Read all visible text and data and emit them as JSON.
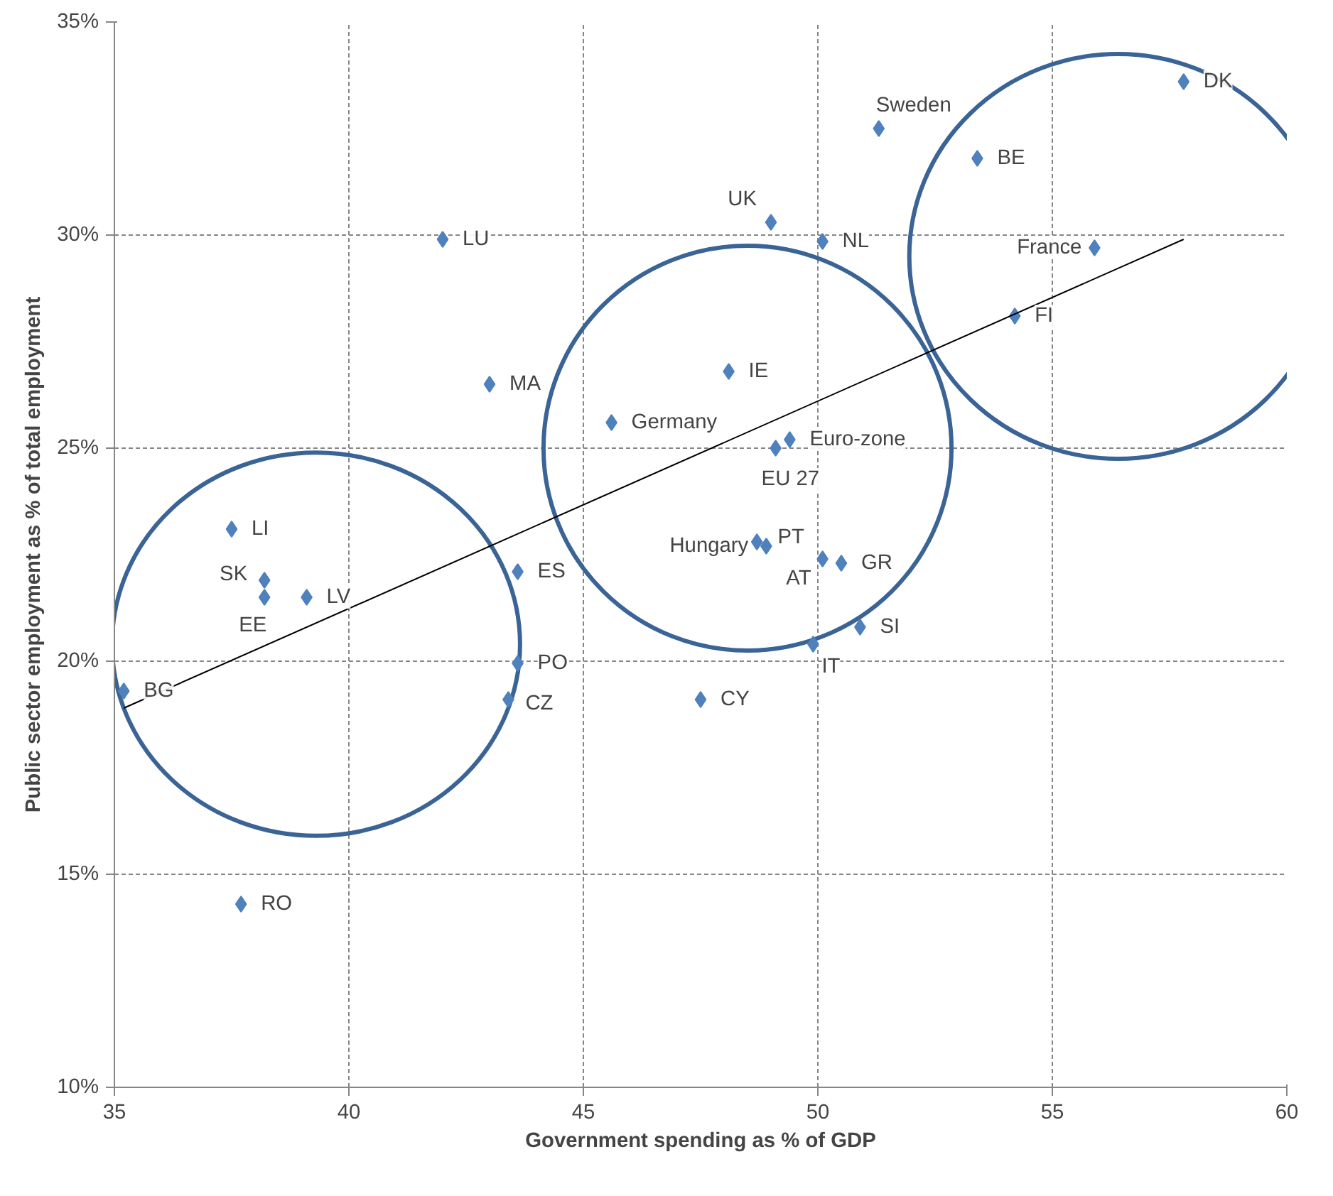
{
  "chart_data": {
    "type": "scatter",
    "xlabel": "Government spending as % of GDP",
    "ylabel": "Public sector employment as % of total employment",
    "xlim": [
      35,
      60
    ],
    "xticks": [
      35,
      40,
      45,
      50,
      55,
      60
    ],
    "ylim": [
      10,
      35
    ],
    "yticks": [
      {
        "value": 10,
        "label": "10%"
      },
      {
        "value": 15,
        "label": "15%"
      },
      {
        "value": 20,
        "label": "20%"
      },
      {
        "value": 25,
        "label": "25%"
      },
      {
        "value": 30,
        "label": "30%"
      },
      {
        "value": 35,
        "label": "35%"
      }
    ],
    "grid": true,
    "series": [
      {
        "marker": "diamond",
        "color": "#4f81bd",
        "x": [
          57.8,
          51.3,
          53.4,
          49.0,
          50.1,
          42.0,
          55.9,
          54.2,
          48.1,
          43.0,
          45.6,
          49.4,
          49.1,
          48.7,
          48.9,
          50.1,
          50.5,
          50.9,
          49.9,
          47.5,
          43.6,
          43.6,
          43.4,
          35.2,
          37.5,
          38.2,
          38.2,
          39.1,
          37.7
        ],
        "values": [
          33.6,
          32.5,
          31.8,
          30.3,
          29.85,
          29.9,
          29.7,
          28.1,
          26.8,
          26.5,
          25.6,
          25.2,
          25.0,
          22.8,
          22.7,
          22.4,
          22.3,
          20.8,
          20.4,
          19.1,
          22.1,
          19.95,
          19.1,
          19.3,
          23.1,
          21.9,
          21.5,
          21.5,
          14.3
        ]
      },
      {
        "type": "line",
        "marker": "none",
        "color": "#000000",
        "x": [
          35.2,
          57.8
        ],
        "values": [
          18.9,
          29.9
        ]
      }
    ],
    "annotations": [
      {
        "text": "DK",
        "x": 57.8,
        "y": 33.6
      },
      {
        "text": "Sweden",
        "x": 51.3,
        "y": 32.5
      },
      {
        "text": "BE",
        "x": 53.4,
        "y": 31.8
      },
      {
        "text": "UK",
        "x": 49.0,
        "y": 30.3
      },
      {
        "text": "NL",
        "x": 50.1,
        "y": 29.85
      },
      {
        "text": "LU",
        "x": 42.0,
        "y": 29.9
      },
      {
        "text": "France",
        "x": 55.9,
        "y": 29.7
      },
      {
        "text": "FI",
        "x": 54.2,
        "y": 28.1
      },
      {
        "text": "IE",
        "x": 48.1,
        "y": 26.8
      },
      {
        "text": "MA",
        "x": 43.0,
        "y": 26.5
      },
      {
        "text": "Germany",
        "x": 45.6,
        "y": 25.6
      },
      {
        "text": "Euro-zone",
        "x": 49.4,
        "y": 25.2
      },
      {
        "text": "EU 27",
        "x": 49.1,
        "y": 25.0
      },
      {
        "text": "Hungary",
        "x": 48.7,
        "y": 22.8
      },
      {
        "text": "PT",
        "x": 48.9,
        "y": 22.7
      },
      {
        "text": "AT",
        "x": 50.1,
        "y": 22.4
      },
      {
        "text": "GR",
        "x": 50.5,
        "y": 22.3
      },
      {
        "text": "SI",
        "x": 50.9,
        "y": 20.8
      },
      {
        "text": "IT",
        "x": 49.9,
        "y": 20.4
      },
      {
        "text": "CY",
        "x": 47.5,
        "y": 19.1
      },
      {
        "text": "ES",
        "x": 43.6,
        "y": 22.1
      },
      {
        "text": "PO",
        "x": 43.6,
        "y": 19.95
      },
      {
        "text": "CZ",
        "x": 43.4,
        "y": 19.1
      },
      {
        "text": "BG",
        "x": 35.2,
        "y": 19.3
      },
      {
        "text": "LI",
        "x": 37.5,
        "y": 23.1
      },
      {
        "text": "SK",
        "x": 38.2,
        "y": 21.9
      },
      {
        "text": "EE",
        "x": 38.2,
        "y": 21.5
      },
      {
        "text": "LV",
        "x": 39.1,
        "y": 21.5
      },
      {
        "text": "RO",
        "x": 37.7,
        "y": 14.3
      }
    ]
  }
}
